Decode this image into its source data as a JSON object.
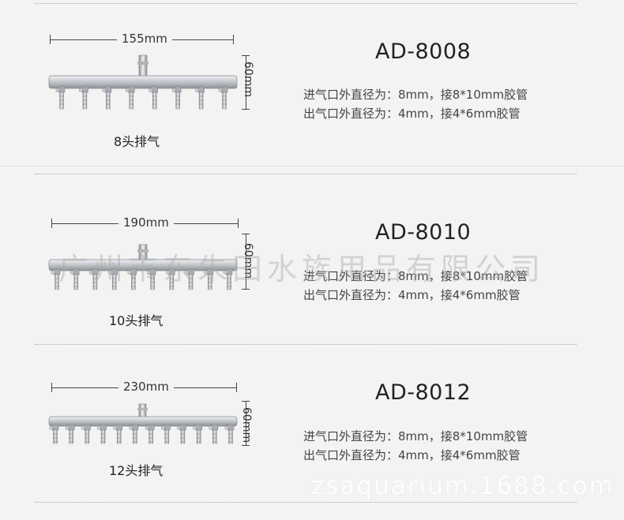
{
  "products": [
    {
      "model": "AD-8008",
      "width_label": "155mm",
      "height_label": "60mm",
      "caption": "8头排气",
      "outlets": 8,
      "spec_inlet": "进气口外直径为：8mm，接8*10mm胶管",
      "spec_outlet": "出气口外直径为：4mm，接4*6mm胶管"
    },
    {
      "model": "AD-8010",
      "width_label": "190mm",
      "height_label": "60mm",
      "caption": "10头排气",
      "outlets": 10,
      "spec_inlet": "进气口外直径为：8mm，接8*10mm胶管",
      "spec_outlet": "出气口外直径为：4mm，接4*6mm胶管"
    },
    {
      "model": "AD-8012",
      "width_label": "230mm",
      "height_label": "60mm",
      "caption": "12头排气",
      "outlets": 12,
      "spec_inlet": "进气口外直径为：8mm，接8*10mm胶管",
      "spec_outlet": "出气口外直径为：4mm，接4*6mm胶管"
    }
  ],
  "watermark_company": "广州市东朱田水族用品有限公司",
  "watermark_site": "zsaquarium.1688.com",
  "colors": {
    "background": "#f3f3f3",
    "metal": "#b8bcc2",
    "text": "#333333"
  }
}
